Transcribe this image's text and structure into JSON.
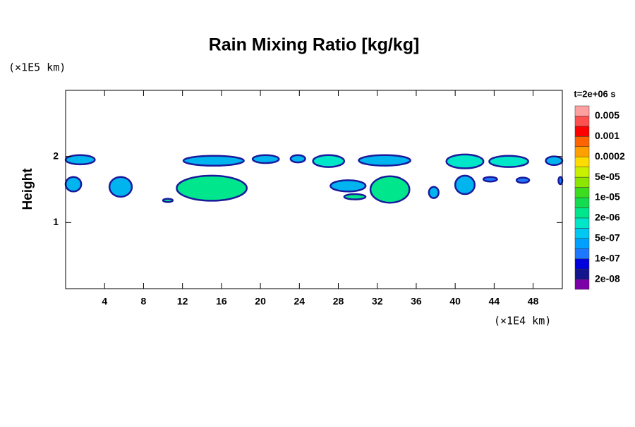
{
  "chart_data": {
    "type": "contour",
    "title": "Rain Mixing Ratio [kg/kg]",
    "y_label": "Height",
    "y_unit": "(×1E5 km)",
    "x_unit": "(×1E4 km)",
    "time_label": "t=2e+06 s",
    "xlim": [
      0,
      51
    ],
    "ylim": [
      0,
      3
    ],
    "xticks": [
      4,
      8,
      12,
      16,
      20,
      24,
      28,
      32,
      36,
      40,
      44,
      48
    ],
    "yticks": [
      1,
      2
    ],
    "colorbar": {
      "colors": [
        "#7b00a8",
        "#14148c",
        "#0000dc",
        "#1e78ff",
        "#00a0ff",
        "#00c8f0",
        "#00e6c8",
        "#00e68c",
        "#14dc50",
        "#3cdc1e",
        "#8ce600",
        "#c8f000",
        "#ffdc00",
        "#ffa000",
        "#ff6400",
        "#ff0000",
        "#ff5050",
        "#ffa0a0"
      ],
      "levels": [
        {
          "value": 2e-08,
          "label": "2e-08"
        },
        {
          "value": 1e-07,
          "label": "1e-07"
        },
        {
          "value": 5e-07,
          "label": "5e-07"
        },
        {
          "value": 2e-06,
          "label": "2e-06"
        },
        {
          "value": 1e-05,
          "label": "1e-05"
        },
        {
          "value": 5e-05,
          "label": "5e-05"
        },
        0.0002,
        0.001,
        0.005
      ]
    },
    "regions": [
      {
        "x": [
          0,
          3
        ],
        "y": [
          1.88,
          2.02
        ],
        "value": 5e-07,
        "color": "#00b4f0"
      },
      {
        "x": [
          0,
          1.6
        ],
        "y": [
          1.47,
          1.69
        ],
        "value": 5e-07,
        "color": "#00b4f0"
      },
      {
        "x": [
          4.5,
          6.8
        ],
        "y": [
          1.39,
          1.69
        ],
        "value": 5e-07,
        "color": "#00b4f0"
      },
      {
        "x": [
          10,
          11
        ],
        "y": [
          1.31,
          1.36
        ],
        "value": 2e-06,
        "color": "#00e68c"
      },
      {
        "x": [
          11.4,
          18.6
        ],
        "y": [
          1.33,
          1.71
        ],
        "value": 2e-06,
        "color": "#00e68c"
      },
      {
        "x": [
          12.1,
          18.3
        ],
        "y": [
          1.86,
          2.01
        ],
        "value": 5e-07,
        "color": "#00b4f0"
      },
      {
        "x": [
          19.2,
          21.9
        ],
        "y": [
          1.9,
          2.02
        ],
        "value": 5e-07,
        "color": "#00b4f0"
      },
      {
        "x": [
          23.1,
          24.6
        ],
        "y": [
          1.91,
          2.02
        ],
        "value": 5e-07,
        "color": "#00b4f0"
      },
      {
        "x": [
          25.4,
          28.6
        ],
        "y": [
          1.84,
          2.02
        ],
        "value": 2e-06,
        "color": "#00e6c8"
      },
      {
        "x": [
          30.1,
          35.4
        ],
        "y": [
          1.86,
          2.02
        ],
        "value": 5e-07,
        "color": "#00b4f0"
      },
      {
        "x": [
          27.2,
          30.8
        ],
        "y": [
          1.47,
          1.64
        ],
        "value": 5e-07,
        "color": "#00b4f0"
      },
      {
        "x": [
          28.6,
          30.8
        ],
        "y": [
          1.35,
          1.43
        ],
        "value": 2e-06,
        "color": "#00e68c"
      },
      {
        "x": [
          31.3,
          35.3
        ],
        "y": [
          1.3,
          1.7
        ],
        "value": 2e-06,
        "color": "#00e68c"
      },
      {
        "x": [
          37.3,
          38.3
        ],
        "y": [
          1.37,
          1.54
        ],
        "value": 5e-07,
        "color": "#00b4f0"
      },
      {
        "x": [
          39.1,
          42.9
        ],
        "y": [
          1.82,
          2.03
        ],
        "value": 2e-06,
        "color": "#00e6c8"
      },
      {
        "x": [
          40,
          42
        ],
        "y": [
          1.43,
          1.71
        ],
        "value": 5e-07,
        "color": "#00b4f0"
      },
      {
        "x": [
          43.5,
          47.5
        ],
        "y": [
          1.84,
          2.01
        ],
        "value": 2e-06,
        "color": "#00e6c8"
      },
      {
        "x": [
          42.9,
          44.3
        ],
        "y": [
          1.62,
          1.69
        ],
        "value": 5e-07,
        "color": "#1e78ff"
      },
      {
        "x": [
          46.3,
          47.6
        ],
        "y": [
          1.6,
          1.68
        ],
        "value": 5e-07,
        "color": "#1e78ff"
      },
      {
        "x": [
          49.3,
          51
        ],
        "y": [
          1.87,
          2.0
        ],
        "value": 5e-07,
        "color": "#00b4f0"
      },
      {
        "x": [
          50.6,
          51
        ],
        "y": [
          1.58,
          1.69
        ],
        "value": 5e-07,
        "color": "#1e78ff"
      }
    ]
  }
}
